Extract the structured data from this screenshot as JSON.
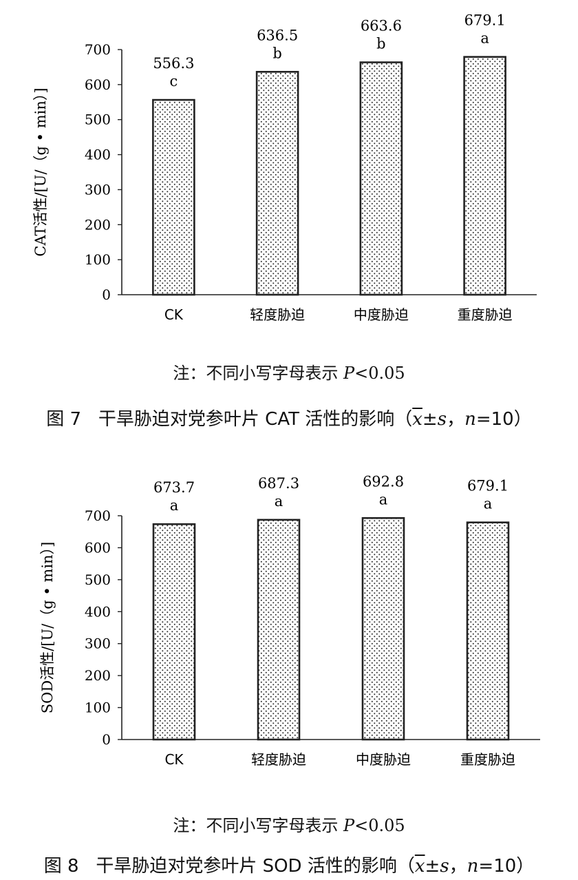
{
  "chart_data": [
    {
      "type": "bar",
      "ylabel": "CAT活性/[U/（g • min）]",
      "ylim": [
        0,
        700
      ],
      "yticks": [
        "0",
        "100",
        "200",
        "300",
        "400",
        "500",
        "600",
        "700"
      ],
      "categories": [
        "CK",
        "轻度胁迫",
        "中度胁迫",
        "重度胁迫"
      ],
      "values": [
        556.3,
        636.5,
        663.6,
        679.1
      ],
      "value_labels": [
        "556.3",
        "636.5",
        "663.6",
        "679.1"
      ],
      "significance": [
        "c",
        "b",
        "b",
        "a"
      ],
      "bar_pattern": "dotted",
      "note": {
        "prefix": "注：不同小写字母表示 ",
        "p": "P",
        "suffix": "<0.05"
      },
      "caption": {
        "fig": "图 7",
        "text": "干旱胁迫对党参叶片 CAT 活性的影响（",
        "xbar": "x",
        "pm": "±",
        "s": "s",
        "sep": "，",
        "n": "n",
        "neq": "=10）"
      }
    },
    {
      "type": "bar",
      "ylabel": "SOD活性/[U/（g • min）]",
      "ylim": [
        0,
        700
      ],
      "yticks": [
        "0",
        "100",
        "200",
        "300",
        "400",
        "500",
        "600",
        "700"
      ],
      "categories": [
        "CK",
        "轻度胁迫",
        "中度胁迫",
        "重度胁迫"
      ],
      "values": [
        673.7,
        687.3,
        692.8,
        679.1
      ],
      "value_labels": [
        "673.7",
        "687.3",
        "692.8",
        "679.1"
      ],
      "significance": [
        "a",
        "a",
        "a",
        "a"
      ],
      "bar_pattern": "dotted",
      "note": {
        "prefix": "注：不同小写字母表示 ",
        "p": "P",
        "suffix": "<0.05"
      },
      "caption": {
        "fig": "图 8",
        "text": "干旱胁迫对党参叶片 SOD 活性的影响（",
        "xbar": "x",
        "pm": "±",
        "s": "s",
        "sep": "，",
        "n": "n",
        "neq": "=10）"
      }
    }
  ]
}
